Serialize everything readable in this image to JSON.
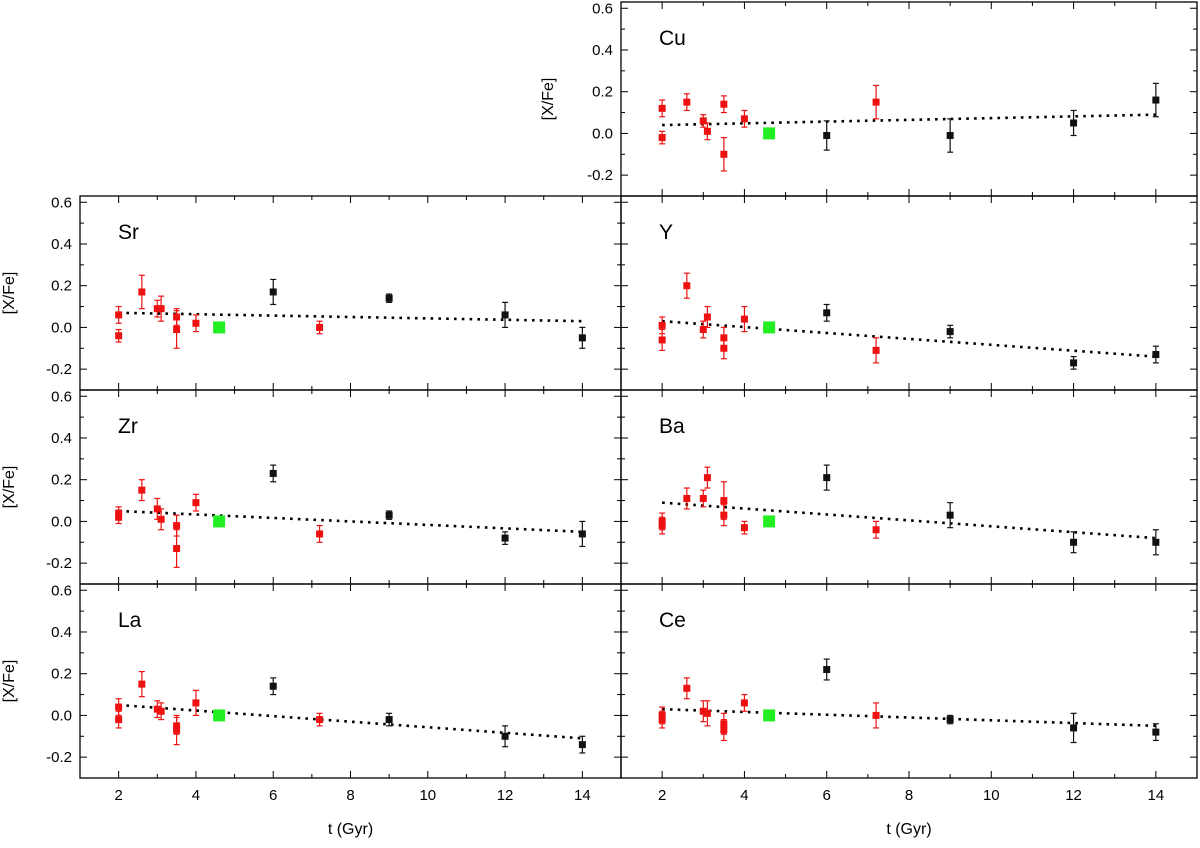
{
  "figure": {
    "xlabel": "t (Gyr)",
    "ylabel": "[X/Fe]"
  },
  "colors": {
    "sample_a": "#ee1111",
    "sample_b": "#111111",
    "sun": "#22ee22",
    "fit": "#000000"
  },
  "chart_data": [
    {
      "type": "scatter",
      "panel_label": "Cu",
      "xlabel": "",
      "ylabel": "[X/Fe]",
      "xlim": [
        1,
        15
      ],
      "ylim": [
        -0.3,
        0.63
      ],
      "xticks": [
        2,
        4,
        6,
        8,
        10,
        12,
        14
      ],
      "yticks": [
        -0.2,
        0.0,
        0.2,
        0.4,
        0.6
      ],
      "ytick_labels": [
        "-0.2",
        "0.0",
        "0.2",
        "0.4",
        "0.6"
      ],
      "series": [
        {
          "kind": "red",
          "points": [
            {
              "x": 2.0,
              "y": 0.12,
              "err": 0.04
            },
            {
              "x": 2.0,
              "y": -0.02,
              "err": 0.03
            },
            {
              "x": 2.6,
              "y": 0.15,
              "err": 0.04
            },
            {
              "x": 3.0,
              "y": 0.06,
              "err": 0.03
            },
            {
              "x": 3.1,
              "y": 0.01,
              "err": 0.04
            },
            {
              "x": 3.5,
              "y": 0.14,
              "err": 0.04
            },
            {
              "x": 3.5,
              "y": -0.1,
              "err": 0.08
            },
            {
              "x": 4.0,
              "y": 0.07,
              "err": 0.04
            },
            {
              "x": 7.2,
              "y": 0.15,
              "err": 0.08
            }
          ]
        },
        {
          "kind": "black",
          "points": [
            {
              "x": 6.0,
              "y": -0.01,
              "err": 0.07
            },
            {
              "x": 9.0,
              "y": -0.01,
              "err": 0.08
            },
            {
              "x": 12.0,
              "y": 0.05,
              "err": 0.06
            },
            {
              "x": 14.0,
              "y": 0.16,
              "err": 0.08
            }
          ]
        },
        {
          "kind": "sun",
          "points": [
            {
              "x": 4.6,
              "y": 0.0
            }
          ]
        }
      ],
      "fit": {
        "x": [
          2.0,
          14.0
        ],
        "y": [
          0.04,
          0.09
        ]
      }
    },
    {
      "type": "scatter",
      "panel_label": "Sr",
      "xlabel": "",
      "ylabel": "[X/Fe]",
      "xlim": [
        1,
        15
      ],
      "ylim": [
        -0.3,
        0.63
      ],
      "xticks": [
        2,
        4,
        6,
        8,
        10,
        12,
        14
      ],
      "yticks": [
        -0.2,
        0.0,
        0.2,
        0.4,
        0.6
      ],
      "ytick_labels": [
        "-0.2",
        "0.0",
        "0.2",
        "0.4",
        "0.6"
      ],
      "series": [
        {
          "kind": "red",
          "points": [
            {
              "x": 2.0,
              "y": 0.06,
              "err": 0.04
            },
            {
              "x": 2.0,
              "y": -0.04,
              "err": 0.03
            },
            {
              "x": 2.6,
              "y": 0.17,
              "err": 0.08
            },
            {
              "x": 3.0,
              "y": 0.09,
              "err": 0.04
            },
            {
              "x": 3.1,
              "y": 0.09,
              "err": 0.06
            },
            {
              "x": 3.5,
              "y": 0.05,
              "err": 0.04
            },
            {
              "x": 3.5,
              "y": -0.01,
              "err": 0.09
            },
            {
              "x": 4.0,
              "y": 0.02,
              "err": 0.04
            },
            {
              "x": 7.2,
              "y": 0.0,
              "err": 0.03
            }
          ]
        },
        {
          "kind": "black",
          "points": [
            {
              "x": 6.0,
              "y": 0.17,
              "err": 0.06
            },
            {
              "x": 9.0,
              "y": 0.14,
              "err": 0.02
            },
            {
              "x": 12.0,
              "y": 0.06,
              "err": 0.06
            },
            {
              "x": 14.0,
              "y": -0.05,
              "err": 0.05
            }
          ]
        },
        {
          "kind": "sun",
          "points": [
            {
              "x": 4.6,
              "y": 0.0
            }
          ]
        }
      ],
      "fit": {
        "x": [
          2.0,
          14.0
        ],
        "y": [
          0.07,
          0.03
        ]
      }
    },
    {
      "type": "scatter",
      "panel_label": "Y",
      "xlabel": "",
      "ylabel": "",
      "xlim": [
        1,
        15
      ],
      "ylim": [
        -0.3,
        0.63
      ],
      "xticks": [
        2,
        4,
        6,
        8,
        10,
        12,
        14
      ],
      "yticks": [
        -0.2,
        0.0,
        0.2,
        0.4,
        0.6
      ],
      "series": [
        {
          "kind": "red",
          "points": [
            {
              "x": 2.0,
              "y": 0.01,
              "err": 0.04
            },
            {
              "x": 2.0,
              "y": -0.06,
              "err": 0.05
            },
            {
              "x": 2.6,
              "y": 0.2,
              "err": 0.06
            },
            {
              "x": 3.0,
              "y": -0.01,
              "err": 0.04
            },
            {
              "x": 3.1,
              "y": 0.05,
              "err": 0.05
            },
            {
              "x": 3.5,
              "y": -0.05,
              "err": 0.05
            },
            {
              "x": 3.5,
              "y": -0.1,
              "err": 0.05
            },
            {
              "x": 4.0,
              "y": 0.04,
              "err": 0.06
            },
            {
              "x": 7.2,
              "y": -0.11,
              "err": 0.06
            }
          ]
        },
        {
          "kind": "black",
          "points": [
            {
              "x": 6.0,
              "y": 0.07,
              "err": 0.04
            },
            {
              "x": 9.0,
              "y": -0.02,
              "err": 0.03
            },
            {
              "x": 12.0,
              "y": -0.17,
              "err": 0.03
            },
            {
              "x": 14.0,
              "y": -0.13,
              "err": 0.04
            }
          ]
        },
        {
          "kind": "sun",
          "points": [
            {
              "x": 4.6,
              "y": 0.0
            }
          ]
        }
      ],
      "fit": {
        "x": [
          2.0,
          14.0
        ],
        "y": [
          0.03,
          -0.14
        ]
      }
    },
    {
      "type": "scatter",
      "panel_label": "Zr",
      "xlabel": "",
      "ylabel": "[X/Fe]",
      "xlim": [
        1,
        15
      ],
      "ylim": [
        -0.3,
        0.63
      ],
      "xticks": [
        2,
        4,
        6,
        8,
        10,
        12,
        14
      ],
      "yticks": [
        -0.2,
        0.0,
        0.2,
        0.4,
        0.6
      ],
      "ytick_labels": [
        "-0.2",
        "0.0",
        "0.2",
        "0.4",
        "0.6"
      ],
      "series": [
        {
          "kind": "red",
          "points": [
            {
              "x": 2.0,
              "y": 0.04,
              "err": 0.03
            },
            {
              "x": 2.0,
              "y": 0.02,
              "err": 0.03
            },
            {
              "x": 2.6,
              "y": 0.15,
              "err": 0.05
            },
            {
              "x": 3.0,
              "y": 0.06,
              "err": 0.05
            },
            {
              "x": 3.1,
              "y": 0.01,
              "err": 0.05
            },
            {
              "x": 3.5,
              "y": -0.02,
              "err": 0.05
            },
            {
              "x": 3.5,
              "y": -0.13,
              "err": 0.09
            },
            {
              "x": 4.0,
              "y": 0.09,
              "err": 0.04
            },
            {
              "x": 7.2,
              "y": -0.06,
              "err": 0.04
            }
          ]
        },
        {
          "kind": "black",
          "points": [
            {
              "x": 6.0,
              "y": 0.23,
              "err": 0.04
            },
            {
              "x": 9.0,
              "y": 0.03,
              "err": 0.02
            },
            {
              "x": 12.0,
              "y": -0.08,
              "err": 0.03
            },
            {
              "x": 14.0,
              "y": -0.06,
              "err": 0.06
            }
          ]
        },
        {
          "kind": "sun",
          "points": [
            {
              "x": 4.6,
              "y": 0.0
            }
          ]
        }
      ],
      "fit": {
        "x": [
          2.0,
          14.0
        ],
        "y": [
          0.05,
          -0.05
        ]
      }
    },
    {
      "type": "scatter",
      "panel_label": "Ba",
      "xlabel": "",
      "ylabel": "",
      "xlim": [
        1,
        15
      ],
      "ylim": [
        -0.3,
        0.63
      ],
      "xticks": [
        2,
        4,
        6,
        8,
        10,
        12,
        14
      ],
      "yticks": [
        -0.2,
        0.0,
        0.2,
        0.4,
        0.6
      ],
      "series": [
        {
          "kind": "red",
          "points": [
            {
              "x": 2.0,
              "y": 0.0,
              "err": 0.04
            },
            {
              "x": 2.0,
              "y": -0.02,
              "err": 0.04
            },
            {
              "x": 2.6,
              "y": 0.11,
              "err": 0.05
            },
            {
              "x": 3.0,
              "y": 0.11,
              "err": 0.04
            },
            {
              "x": 3.1,
              "y": 0.21,
              "err": 0.05
            },
            {
              "x": 3.5,
              "y": 0.1,
              "err": 0.09
            },
            {
              "x": 3.5,
              "y": 0.03,
              "err": 0.05
            },
            {
              "x": 4.0,
              "y": -0.03,
              "err": 0.03
            },
            {
              "x": 7.2,
              "y": -0.04,
              "err": 0.04
            }
          ]
        },
        {
          "kind": "black",
          "points": [
            {
              "x": 6.0,
              "y": 0.21,
              "err": 0.06
            },
            {
              "x": 9.0,
              "y": 0.03,
              "err": 0.06
            },
            {
              "x": 12.0,
              "y": -0.1,
              "err": 0.05
            },
            {
              "x": 14.0,
              "y": -0.1,
              "err": 0.06
            }
          ]
        },
        {
          "kind": "sun",
          "points": [
            {
              "x": 4.6,
              "y": 0.0
            }
          ]
        }
      ],
      "fit": {
        "x": [
          2.0,
          14.0
        ],
        "y": [
          0.09,
          -0.08
        ]
      }
    },
    {
      "type": "scatter",
      "panel_label": "La",
      "xlabel": "t (Gyr)",
      "ylabel": "[X/Fe]",
      "xlim": [
        1,
        15
      ],
      "ylim": [
        -0.3,
        0.63
      ],
      "xticks": [
        2,
        4,
        6,
        8,
        10,
        12,
        14
      ],
      "yticks": [
        -0.2,
        0.0,
        0.2,
        0.4,
        0.6
      ],
      "xtick_labels": [
        "2",
        "4",
        "6",
        "8",
        "10",
        "12",
        "14"
      ],
      "ytick_labels": [
        "-0.2",
        "0.0",
        "0.2",
        "0.4",
        "0.6"
      ],
      "series": [
        {
          "kind": "red",
          "points": [
            {
              "x": 2.0,
              "y": 0.04,
              "err": 0.04
            },
            {
              "x": 2.0,
              "y": -0.02,
              "err": 0.04
            },
            {
              "x": 2.6,
              "y": 0.15,
              "err": 0.06
            },
            {
              "x": 3.0,
              "y": 0.03,
              "err": 0.04
            },
            {
              "x": 3.1,
              "y": 0.02,
              "err": 0.04
            },
            {
              "x": 3.5,
              "y": -0.05,
              "err": 0.04
            },
            {
              "x": 3.5,
              "y": -0.07,
              "err": 0.07
            },
            {
              "x": 4.0,
              "y": 0.06,
              "err": 0.06
            },
            {
              "x": 7.2,
              "y": -0.02,
              "err": 0.03
            }
          ]
        },
        {
          "kind": "black",
          "points": [
            {
              "x": 6.0,
              "y": 0.14,
              "err": 0.04
            },
            {
              "x": 9.0,
              "y": -0.02,
              "err": 0.03
            },
            {
              "x": 12.0,
              "y": -0.1,
              "err": 0.05
            },
            {
              "x": 14.0,
              "y": -0.14,
              "err": 0.04
            }
          ]
        },
        {
          "kind": "sun",
          "points": [
            {
              "x": 4.6,
              "y": 0.0
            }
          ]
        }
      ],
      "fit": {
        "x": [
          2.0,
          14.0
        ],
        "y": [
          0.05,
          -0.11
        ]
      }
    },
    {
      "type": "scatter",
      "panel_label": "Ce",
      "xlabel": "t (Gyr)",
      "ylabel": "",
      "xlim": [
        1,
        15
      ],
      "ylim": [
        -0.3,
        0.63
      ],
      "xticks": [
        2,
        4,
        6,
        8,
        10,
        12,
        14
      ],
      "yticks": [
        -0.2,
        0.0,
        0.2,
        0.4,
        0.6
      ],
      "xtick_labels": [
        "2",
        "4",
        "6",
        "8",
        "10",
        "12",
        "14"
      ],
      "series": [
        {
          "kind": "red",
          "points": [
            {
              "x": 2.0,
              "y": 0.0,
              "err": 0.04
            },
            {
              "x": 2.0,
              "y": -0.02,
              "err": 0.04
            },
            {
              "x": 2.6,
              "y": 0.13,
              "err": 0.05
            },
            {
              "x": 3.0,
              "y": 0.02,
              "err": 0.05
            },
            {
              "x": 3.1,
              "y": 0.01,
              "err": 0.06
            },
            {
              "x": 3.5,
              "y": -0.04,
              "err": 0.05
            },
            {
              "x": 3.5,
              "y": -0.07,
              "err": 0.05
            },
            {
              "x": 4.0,
              "y": 0.06,
              "err": 0.04
            },
            {
              "x": 7.2,
              "y": 0.0,
              "err": 0.06
            }
          ]
        },
        {
          "kind": "black",
          "points": [
            {
              "x": 6.0,
              "y": 0.22,
              "err": 0.05
            },
            {
              "x": 9.0,
              "y": -0.02,
              "err": 0.02
            },
            {
              "x": 12.0,
              "y": -0.06,
              "err": 0.07
            },
            {
              "x": 14.0,
              "y": -0.08,
              "err": 0.04
            }
          ]
        },
        {
          "kind": "sun",
          "points": [
            {
              "x": 4.6,
              "y": 0.0
            }
          ]
        }
      ],
      "fit": {
        "x": [
          2.0,
          14.0
        ],
        "y": [
          0.03,
          -0.05
        ]
      }
    }
  ]
}
